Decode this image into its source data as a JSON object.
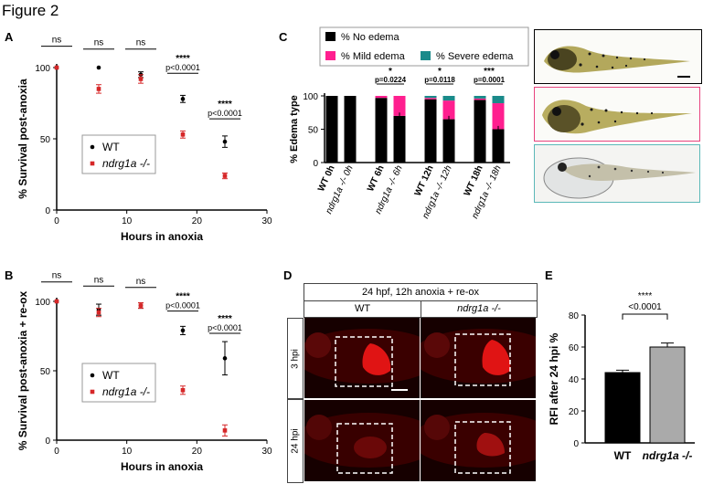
{
  "figure_title": "Figure 2",
  "panel_labels": [
    "A",
    "B",
    "C",
    "D",
    "E"
  ],
  "chart_data": [
    {
      "id": "A",
      "type": "scatter",
      "xlabel": "Hours in anoxia",
      "ylabel": "% Survival post-anoxia",
      "xlim": [
        0,
        30
      ],
      "ylim": [
        0,
        100
      ],
      "xticks": [
        "0",
        "10",
        "20",
        "30"
      ],
      "yticks": [
        "0",
        "50",
        "100"
      ],
      "legend": {
        "placement": "center-left",
        "entries": [
          "WT",
          "ndrg1a -/-"
        ]
      },
      "series": [
        {
          "name": "WT",
          "color": "#000000",
          "x": [
            0,
            6,
            12,
            18,
            24
          ],
          "y": [
            100,
            100,
            95,
            78,
            48
          ],
          "err": [
            0,
            0,
            2,
            2.5,
            4
          ]
        },
        {
          "name": "ndrg1a -/-",
          "color": "#d62728",
          "x": [
            0,
            6,
            12,
            18,
            24
          ],
          "y": [
            100,
            85,
            92,
            53,
            24
          ],
          "err": [
            0,
            3,
            3,
            2.5,
            2
          ]
        }
      ],
      "annotations": [
        {
          "x": 0,
          "text": "ns",
          "y": 115
        },
        {
          "x": 6,
          "text": "ns",
          "y": 113
        },
        {
          "x": 12,
          "text": "ns",
          "y": 113
        },
        {
          "x": 18,
          "text": "****",
          "p": "p<0.0001",
          "y": 96
        },
        {
          "x": 24,
          "text": "****",
          "p": "p<0.0001",
          "y": 64
        }
      ]
    },
    {
      "id": "B",
      "type": "scatter",
      "xlabel": "Hours in anoxia",
      "ylabel": "% Survival post-anoxia + re-ox",
      "xlim": [
        0,
        30
      ],
      "ylim": [
        0,
        100
      ],
      "xticks": [
        "0",
        "10",
        "20",
        "30"
      ],
      "yticks": [
        "0",
        "50",
        "100"
      ],
      "legend": {
        "placement": "center-left",
        "entries": [
          "WT",
          "ndrg1a -/-"
        ]
      },
      "series": [
        {
          "name": "WT",
          "color": "#000000",
          "x": [
            0,
            6,
            12,
            18,
            24
          ],
          "y": [
            100,
            94,
            97,
            79,
            59
          ],
          "err": [
            0,
            4,
            2,
            3,
            12
          ]
        },
        {
          "name": "ndrg1a -/-",
          "color": "#d62728",
          "x": [
            0,
            6,
            12,
            18,
            24
          ],
          "y": [
            100,
            92,
            97,
            36,
            7
          ],
          "err": [
            0,
            3,
            2,
            3,
            4
          ]
        }
      ],
      "annotations": [
        {
          "x": 0,
          "text": "ns",
          "y": 114
        },
        {
          "x": 6,
          "text": "ns",
          "y": 111
        },
        {
          "x": 12,
          "text": "ns",
          "y": 110
        },
        {
          "x": 18,
          "text": "****",
          "p": "p<0.0001",
          "y": 93
        },
        {
          "x": 24,
          "text": "****",
          "p": "p<0.0001",
          "y": 77
        }
      ]
    },
    {
      "id": "C",
      "type": "bar",
      "stacked": true,
      "ylabel": "% Edema type",
      "ylim": [
        0,
        100
      ],
      "yticks": [
        "0",
        "50",
        "100"
      ],
      "categories": [
        "WT 0h",
        "ndrg1a -/- 0h",
        "WT 6h",
        "ndrg1a -/- 6h",
        "WT 12h",
        "ndrg1a -/- 12h",
        "WT 18h",
        "ndrg1a -/- 18h"
      ],
      "legend": {
        "placement": "top",
        "entries": [
          "% No edema",
          "% Mild edema",
          "% Severe edema"
        ]
      },
      "series": [
        {
          "name": "% No edema",
          "color": "#000000",
          "values": [
            100,
            100,
            97,
            70,
            95,
            65,
            94,
            50
          ]
        },
        {
          "name": "% Mild edema",
          "color": "#ff1f8f",
          "values": [
            0,
            0,
            3,
            30,
            2,
            28,
            2,
            39
          ]
        },
        {
          "name": "% Severe edema",
          "color": "#1a8a8a",
          "values": [
            0,
            0,
            0,
            0,
            3,
            7,
            4,
            11
          ]
        }
      ],
      "annotations": [
        {
          "between": [
            2,
            3
          ],
          "text": "*",
          "p": "p=0.0224"
        },
        {
          "between": [
            4,
            5
          ],
          "text": "*",
          "p": "p=0.0118"
        },
        {
          "between": [
            6,
            7
          ],
          "text": "***",
          "p": "p=0.0001"
        }
      ]
    },
    {
      "id": "E",
      "type": "bar",
      "ylabel": "RFI after 24 hpi %",
      "ylim": [
        0,
        80
      ],
      "yticks": [
        "0",
        "20",
        "40",
        "60",
        "80"
      ],
      "categories": [
        "WT",
        "ndrg1a -/-"
      ],
      "values": [
        44,
        60
      ],
      "err": [
        1.5,
        2.5
      ],
      "colors": [
        "#000000",
        "#aaaaaa"
      ],
      "annotation": {
        "text": "****",
        "p": "<0.0001"
      }
    }
  ],
  "panel_d": {
    "header": "24 hpf, 12h anoxia + re-ox",
    "columns": [
      "WT",
      "ndrg1a -/-"
    ],
    "rows": [
      "3 hpi",
      "24 hpi"
    ]
  }
}
